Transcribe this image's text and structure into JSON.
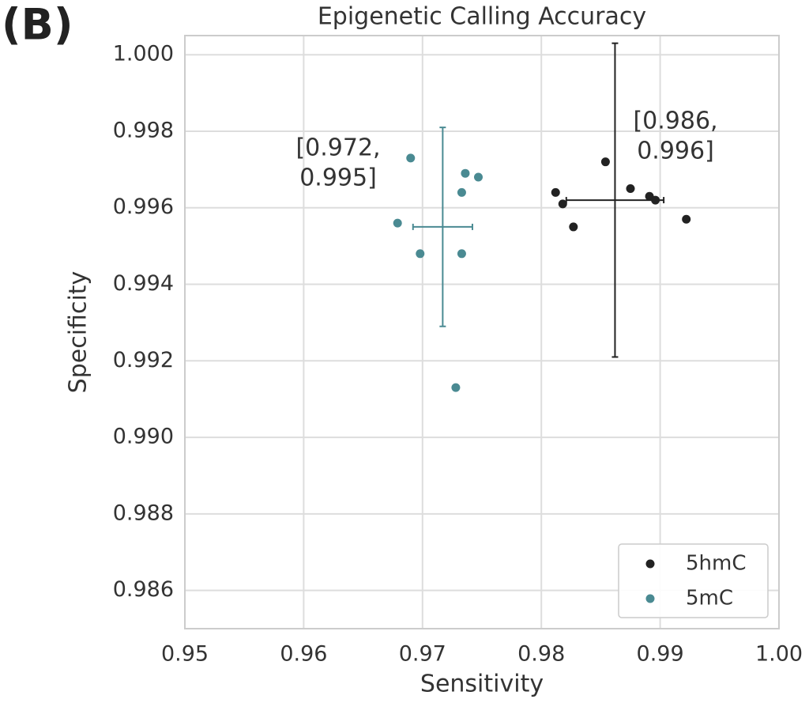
{
  "chart_data": {
    "type": "scatter",
    "panel_label": "(B)",
    "title": "Epigenetic Calling Accuracy",
    "x_label": "Sensitivity",
    "y_label": "Specificity",
    "xlim": [
      0.95,
      1.0
    ],
    "xticks": [
      0.95,
      0.96,
      0.97,
      0.98,
      0.99,
      {
        "value": 1,
        "label": "1.00"
      }
    ],
    "ylim": [
      0.985,
      1.0005
    ],
    "yticks": [
      0.986,
      0.988,
      {
        "value": 0.99,
        "label": "0.990"
      },
      0.992,
      0.994,
      0.996,
      0.998,
      {
        "value": 1,
        "label": "1.000"
      }
    ],
    "grid": true,
    "legend": "lower right",
    "series": [
      {
        "name": "5hmC",
        "color": "#222222",
        "x": [
          0.9812,
          0.9818,
          0.9827,
          0.9854,
          0.9875,
          0.9891,
          0.9896,
          0.9922
        ],
        "y": [
          0.9964,
          0.9961,
          0.9955,
          0.9972,
          0.9965,
          0.9963,
          0.9962,
          0.9957
        ],
        "x_mean": 0.9862,
        "y_mean": 0.9962,
        "x_err": 0.0041,
        "y_err": 0.0041,
        "annotation": [
          "[0.986,",
          "0.996]"
        ]
      },
      {
        "name": "5mC",
        "color": "#4a8a92",
        "x": [
          0.969,
          0.9736,
          0.9747,
          0.9733,
          0.9679,
          0.9698,
          0.9733,
          0.9728
        ],
        "y": [
          0.9973,
          0.9969,
          0.9968,
          0.9964,
          0.9956,
          0.9948,
          0.9948,
          0.9913
        ],
        "x_mean": 0.9717,
        "y_mean": 0.9955,
        "x_err": 0.0025,
        "y_err": 0.0026,
        "annotation": [
          "[0.972,",
          "0.995]"
        ]
      }
    ]
  }
}
